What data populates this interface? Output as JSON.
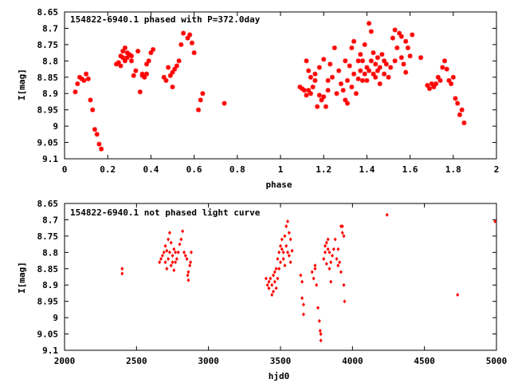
{
  "colors": {
    "points": "#ff0000",
    "axes": "#000000",
    "background": "#ffffff"
  },
  "chart_data": [
    {
      "type": "scatter",
      "title": "154822-6940.1 phased with P=372.0day",
      "xlabel": "phase",
      "ylabel": "I[mag]",
      "xlim": [
        0,
        2
      ],
      "ylim": [
        8.65,
        9.1
      ],
      "y_inverted": true,
      "grid": false,
      "x_ticks": [
        "0",
        "0.2",
        "0.4",
        "0.6",
        "0.8",
        "1",
        "1.2",
        "1.4",
        "1.6",
        "1.8",
        "2"
      ],
      "y_ticks": [
        "8.65",
        "8.7",
        "8.75",
        "8.8",
        "8.85",
        "8.9",
        "8.95",
        "9",
        "9.05",
        "9.1"
      ],
      "marker": "star",
      "points": [
        [
          0.05,
          8.895
        ],
        [
          0.06,
          8.87
        ],
        [
          0.07,
          8.85
        ],
        [
          0.08,
          8.855
        ],
        [
          0.09,
          8.86
        ],
        [
          0.1,
          8.84
        ],
        [
          0.11,
          8.855
        ],
        [
          0.12,
          8.92
        ],
        [
          0.13,
          8.95
        ],
        [
          0.14,
          9.01
        ],
        [
          0.15,
          9.025
        ],
        [
          0.16,
          9.055
        ],
        [
          0.17,
          9.07
        ],
        [
          0.24,
          8.81
        ],
        [
          0.25,
          8.805
        ],
        [
          0.26,
          8.785
        ],
        [
          0.26,
          8.815
        ],
        [
          0.27,
          8.77
        ],
        [
          0.27,
          8.79
        ],
        [
          0.28,
          8.76
        ],
        [
          0.28,
          8.8
        ],
        [
          0.29,
          8.775
        ],
        [
          0.29,
          8.79
        ],
        [
          0.3,
          8.78
        ],
        [
          0.31,
          8.8
        ],
        [
          0.31,
          8.785
        ],
        [
          0.32,
          8.845
        ],
        [
          0.33,
          8.83
        ],
        [
          0.34,
          8.77
        ],
        [
          0.35,
          8.895
        ],
        [
          0.36,
          8.845
        ],
        [
          0.36,
          8.84
        ],
        [
          0.37,
          8.85
        ],
        [
          0.38,
          8.84
        ],
        [
          0.38,
          8.81
        ],
        [
          0.39,
          8.8
        ],
        [
          0.4,
          8.775
        ],
        [
          0.41,
          8.765
        ],
        [
          0.46,
          8.85
        ],
        [
          0.47,
          8.86
        ],
        [
          0.48,
          8.82
        ],
        [
          0.49,
          8.845
        ],
        [
          0.5,
          8.88
        ],
        [
          0.5,
          8.835
        ],
        [
          0.51,
          8.825
        ],
        [
          0.52,
          8.815
        ],
        [
          0.53,
          8.8
        ],
        [
          0.54,
          8.75
        ],
        [
          0.55,
          8.715
        ],
        [
          0.57,
          8.73
        ],
        [
          0.58,
          8.72
        ],
        [
          0.59,
          8.745
        ],
        [
          0.6,
          8.775
        ],
        [
          0.62,
          8.95
        ],
        [
          0.63,
          8.92
        ],
        [
          0.64,
          8.9
        ],
        [
          0.74,
          8.93
        ],
        [
          1.09,
          8.88
        ],
        [
          1.1,
          8.885
        ],
        [
          1.11,
          8.89
        ],
        [
          1.12,
          8.905
        ],
        [
          1.13,
          8.89
        ],
        [
          1.14,
          8.9
        ],
        [
          1.15,
          8.88
        ],
        [
          1.16,
          8.86
        ],
        [
          1.17,
          8.94
        ],
        [
          1.18,
          8.905
        ],
        [
          1.19,
          8.92
        ],
        [
          1.2,
          8.91
        ],
        [
          1.21,
          8.94
        ],
        [
          1.22,
          8.89
        ],
        [
          1.12,
          8.8
        ],
        [
          1.13,
          8.83
        ],
        [
          1.14,
          8.85
        ],
        [
          1.16,
          8.84
        ],
        [
          1.18,
          8.82
        ],
        [
          1.2,
          8.795
        ],
        [
          1.22,
          8.86
        ],
        [
          1.23,
          8.81
        ],
        [
          1.24,
          8.85
        ],
        [
          1.25,
          8.76
        ],
        [
          1.26,
          8.9
        ],
        [
          1.27,
          8.83
        ],
        [
          1.28,
          8.87
        ],
        [
          1.29,
          8.89
        ],
        [
          1.3,
          8.8
        ],
        [
          1.3,
          8.92
        ],
        [
          1.31,
          8.93
        ],
        [
          1.31,
          8.86
        ],
        [
          1.32,
          8.815
        ],
        [
          1.33,
          8.76
        ],
        [
          1.33,
          8.88
        ],
        [
          1.34,
          8.74
        ],
        [
          1.34,
          8.84
        ],
        [
          1.35,
          8.9
        ],
        [
          1.36,
          8.855
        ],
        [
          1.36,
          8.8
        ],
        [
          1.37,
          8.83
        ],
        [
          1.37,
          8.78
        ],
        [
          1.38,
          8.86
        ],
        [
          1.38,
          8.8
        ],
        [
          1.39,
          8.84
        ],
        [
          1.39,
          8.75
        ],
        [
          1.4,
          8.82
        ],
        [
          1.4,
          8.86
        ],
        [
          1.41,
          8.685
        ],
        [
          1.41,
          8.83
        ],
        [
          1.42,
          8.71
        ],
        [
          1.42,
          8.8
        ],
        [
          1.43,
          8.84
        ],
        [
          1.43,
          8.775
        ],
        [
          1.44,
          8.81
        ],
        [
          1.44,
          8.85
        ],
        [
          1.45,
          8.79
        ],
        [
          1.45,
          8.83
        ],
        [
          1.46,
          8.82
        ],
        [
          1.46,
          8.87
        ],
        [
          1.47,
          8.78
        ],
        [
          1.48,
          8.8
        ],
        [
          1.48,
          8.84
        ],
        [
          1.49,
          8.81
        ],
        [
          1.5,
          8.85
        ],
        [
          1.51,
          8.82
        ],
        [
          1.52,
          8.73
        ],
        [
          1.53,
          8.705
        ],
        [
          1.53,
          8.8
        ],
        [
          1.54,
          8.76
        ],
        [
          1.55,
          8.715
        ],
        [
          1.56,
          8.79
        ],
        [
          1.56,
          8.725
        ],
        [
          1.57,
          8.81
        ],
        [
          1.58,
          8.835
        ],
        [
          1.58,
          8.74
        ],
        [
          1.59,
          8.76
        ],
        [
          1.6,
          8.785
        ],
        [
          1.61,
          8.72
        ],
        [
          1.65,
          8.79
        ],
        [
          1.68,
          8.875
        ],
        [
          1.69,
          8.885
        ],
        [
          1.7,
          8.87
        ],
        [
          1.71,
          8.88
        ],
        [
          1.72,
          8.87
        ],
        [
          1.73,
          8.85
        ],
        [
          1.74,
          8.86
        ],
        [
          1.75,
          8.82
        ],
        [
          1.76,
          8.8
        ],
        [
          1.77,
          8.825
        ],
        [
          1.78,
          8.86
        ],
        [
          1.79,
          8.87
        ],
        [
          1.8,
          8.85
        ],
        [
          1.81,
          8.915
        ],
        [
          1.82,
          8.93
        ],
        [
          1.83,
          8.965
        ],
        [
          1.84,
          8.95
        ],
        [
          1.85,
          8.99
        ]
      ]
    },
    {
      "type": "scatter",
      "title": "154822-6940.1 not phased light curve",
      "xlabel": "hjd0",
      "ylabel": "I[mag]",
      "xlim": [
        2000,
        5000
      ],
      "ylim": [
        8.65,
        9.1
      ],
      "y_inverted": true,
      "grid": false,
      "x_ticks": [
        "2000",
        "2500",
        "3000",
        "3500",
        "4000",
        "4500",
        "5000"
      ],
      "y_ticks": [
        "8.65",
        "8.7",
        "8.75",
        "8.8",
        "8.85",
        "8.9",
        "8.95",
        "9",
        "9.05",
        "9.1"
      ],
      "marker": "diamond",
      "points": [
        [
          2400,
          8.85
        ],
        [
          2400,
          8.865
        ],
        [
          2660,
          8.83
        ],
        [
          2670,
          8.82
        ],
        [
          2680,
          8.81
        ],
        [
          2690,
          8.8
        ],
        [
          2700,
          8.78
        ],
        [
          2700,
          8.83
        ],
        [
          2710,
          8.795
        ],
        [
          2710,
          8.85
        ],
        [
          2720,
          8.76
        ],
        [
          2720,
          8.82
        ],
        [
          2730,
          8.74
        ],
        [
          2730,
          8.8
        ],
        [
          2740,
          8.77
        ],
        [
          2740,
          8.84
        ],
        [
          2750,
          8.81
        ],
        [
          2750,
          8.83
        ],
        [
          2760,
          8.79
        ],
        [
          2760,
          8.855
        ],
        [
          2770,
          8.8
        ],
        [
          2770,
          8.83
        ],
        [
          2780,
          8.82
        ],
        [
          2790,
          8.8
        ],
        [
          2800,
          8.775
        ],
        [
          2810,
          8.76
        ],
        [
          2820,
          8.735
        ],
        [
          2830,
          8.8
        ],
        [
          2840,
          8.81
        ],
        [
          2850,
          8.82
        ],
        [
          2855,
          8.87
        ],
        [
          2860,
          8.885
        ],
        [
          2860,
          8.86
        ],
        [
          2870,
          8.84
        ],
        [
          2875,
          8.83
        ],
        [
          2880,
          8.8
        ],
        [
          3400,
          8.88
        ],
        [
          3410,
          8.9
        ],
        [
          3420,
          8.91
        ],
        [
          3420,
          8.89
        ],
        [
          3430,
          8.88
        ],
        [
          3440,
          8.93
        ],
        [
          3440,
          8.9
        ],
        [
          3450,
          8.87
        ],
        [
          3450,
          8.92
        ],
        [
          3460,
          8.86
        ],
        [
          3460,
          8.89
        ],
        [
          3470,
          8.85
        ],
        [
          3470,
          8.91
        ],
        [
          3480,
          8.82
        ],
        [
          3480,
          8.88
        ],
        [
          3490,
          8.8
        ],
        [
          3490,
          8.85
        ],
        [
          3500,
          8.78
        ],
        [
          3500,
          8.83
        ],
        [
          3510,
          8.79
        ],
        [
          3510,
          8.76
        ],
        [
          3520,
          8.82
        ],
        [
          3520,
          8.8
        ],
        [
          3530,
          8.75
        ],
        [
          3530,
          8.84
        ],
        [
          3540,
          8.78
        ],
        [
          3540,
          8.72
        ],
        [
          3550,
          8.705
        ],
        [
          3550,
          8.8
        ],
        [
          3560,
          8.74
        ],
        [
          3560,
          8.81
        ],
        [
          3570,
          8.76
        ],
        [
          3570,
          8.83
        ],
        [
          3580,
          8.795
        ],
        [
          3640,
          8.87
        ],
        [
          3650,
          8.89
        ],
        [
          3650,
          8.94
        ],
        [
          3660,
          8.96
        ],
        [
          3660,
          8.99
        ],
        [
          3720,
          8.86
        ],
        [
          3730,
          8.88
        ],
        [
          3740,
          8.85
        ],
        [
          3740,
          8.84
        ],
        [
          3750,
          8.9
        ],
        [
          3760,
          8.97
        ],
        [
          3770,
          9.01
        ],
        [
          3775,
          9.04
        ],
        [
          3780,
          9.05
        ],
        [
          3780,
          9.07
        ],
        [
          3800,
          8.82
        ],
        [
          3810,
          8.8
        ],
        [
          3810,
          8.78
        ],
        [
          3820,
          8.77
        ],
        [
          3820,
          8.835
        ],
        [
          3830,
          8.79
        ],
        [
          3830,
          8.76
        ],
        [
          3840,
          8.8
        ],
        [
          3840,
          8.85
        ],
        [
          3850,
          8.83
        ],
        [
          3850,
          8.89
        ],
        [
          3860,
          8.81
        ],
        [
          3870,
          8.79
        ],
        [
          3880,
          8.76
        ],
        [
          3890,
          8.82
        ],
        [
          3900,
          8.84
        ],
        [
          3900,
          8.79
        ],
        [
          3910,
          8.83
        ],
        [
          3920,
          8.72
        ],
        [
          3920,
          8.86
        ],
        [
          3930,
          8.74
        ],
        [
          3930,
          8.72
        ],
        [
          3940,
          8.75
        ],
        [
          3940,
          8.9
        ],
        [
          3945,
          8.95
        ],
        [
          4240,
          8.685
        ],
        [
          4730,
          8.93
        ],
        [
          4990,
          8.705
        ]
      ]
    }
  ]
}
